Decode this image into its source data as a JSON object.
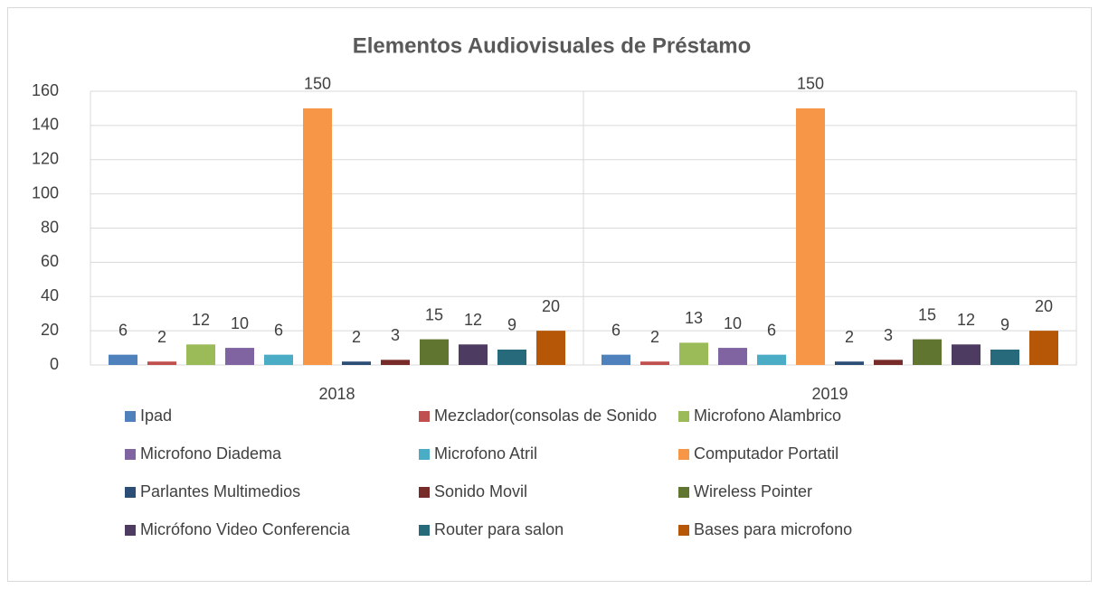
{
  "chart_data": {
    "type": "bar",
    "title": "Elementos Audiovisuales de Préstamo",
    "categories": [
      "2018",
      "2019"
    ],
    "series": [
      {
        "name": "Ipad",
        "color": "#4f81bd",
        "values": [
          6,
          6
        ]
      },
      {
        "name": "Mezclador(consolas de Sonido",
        "color": "#c0504d",
        "values": [
          2,
          2
        ]
      },
      {
        "name": "Microfono Alambrico",
        "color": "#9bbb59",
        "values": [
          12,
          13
        ]
      },
      {
        "name": "Microfono Diadema",
        "color": "#8064a2",
        "values": [
          10,
          10
        ]
      },
      {
        "name": "Microfono Atril",
        "color": "#4bacc6",
        "values": [
          6,
          6
        ]
      },
      {
        "name": "Computador Portatil",
        "color": "#f79646",
        "values": [
          150,
          150
        ]
      },
      {
        "name": "Parlantes Multimedios",
        "color": "#2c4d75",
        "values": [
          2,
          2
        ]
      },
      {
        "name": "Sonido Movil",
        "color": "#772c2a",
        "values": [
          3,
          3
        ]
      },
      {
        "name": "Wireless Pointer",
        "color": "#5f7530",
        "values": [
          15,
          15
        ]
      },
      {
        "name": "Micrófono Video Conferencia",
        "color": "#4d3b62",
        "values": [
          12,
          12
        ]
      },
      {
        "name": "Router para salon",
        "color": "#276a7c",
        "values": [
          9,
          9
        ]
      },
      {
        "name": "Bases para microfono",
        "color": "#b65708",
        "values": [
          20,
          20
        ]
      }
    ],
    "ylim": [
      0,
      160
    ],
    "yticks": [
      0,
      20,
      40,
      60,
      80,
      100,
      120,
      140,
      160
    ],
    "grid": true,
    "legend": "bottom"
  }
}
